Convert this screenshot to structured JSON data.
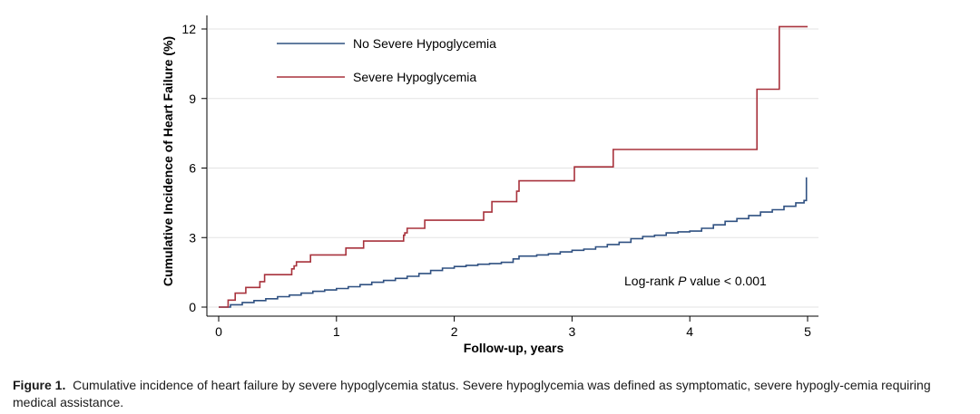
{
  "chart_data": {
    "type": "line",
    "step": true,
    "title": "",
    "xlabel": "Follow-up, years",
    "ylabel": "Cumulative Incidence of Heart Failure (%)",
    "xlim": [
      0,
      5
    ],
    "ylim": [
      0,
      12
    ],
    "xticks": [
      0,
      1,
      2,
      3,
      4,
      5
    ],
    "yticks": [
      0,
      3,
      6,
      9,
      12
    ],
    "grid": "horizontal",
    "legend_position": "top-left",
    "series": [
      {
        "name": "No Severe Hypoglycemia",
        "color": "#2f5081",
        "points": [
          [
            0,
            0
          ],
          [
            0.1,
            0.1
          ],
          [
            0.2,
            0.2
          ],
          [
            0.3,
            0.28
          ],
          [
            0.4,
            0.36
          ],
          [
            0.5,
            0.45
          ],
          [
            0.6,
            0.52
          ],
          [
            0.7,
            0.6
          ],
          [
            0.8,
            0.68
          ],
          [
            0.9,
            0.74
          ],
          [
            1.0,
            0.8
          ],
          [
            1.1,
            0.88
          ],
          [
            1.2,
            0.97
          ],
          [
            1.3,
            1.07
          ],
          [
            1.4,
            1.15
          ],
          [
            1.5,
            1.24
          ],
          [
            1.6,
            1.33
          ],
          [
            1.7,
            1.45
          ],
          [
            1.8,
            1.58
          ],
          [
            1.9,
            1.68
          ],
          [
            2.0,
            1.75
          ],
          [
            2.1,
            1.8
          ],
          [
            2.2,
            1.85
          ],
          [
            2.3,
            1.88
          ],
          [
            2.4,
            1.93
          ],
          [
            2.5,
            2.08
          ],
          [
            2.55,
            2.2
          ],
          [
            2.7,
            2.25
          ],
          [
            2.8,
            2.3
          ],
          [
            2.9,
            2.38
          ],
          [
            3.0,
            2.45
          ],
          [
            3.1,
            2.5
          ],
          [
            3.2,
            2.6
          ],
          [
            3.3,
            2.7
          ],
          [
            3.4,
            2.8
          ],
          [
            3.5,
            2.95
          ],
          [
            3.6,
            3.05
          ],
          [
            3.7,
            3.1
          ],
          [
            3.8,
            3.2
          ],
          [
            3.9,
            3.25
          ],
          [
            4.0,
            3.28
          ],
          [
            4.1,
            3.4
          ],
          [
            4.2,
            3.55
          ],
          [
            4.3,
            3.7
          ],
          [
            4.4,
            3.82
          ],
          [
            4.5,
            3.95
          ],
          [
            4.6,
            4.1
          ],
          [
            4.7,
            4.2
          ],
          [
            4.8,
            4.35
          ],
          [
            4.9,
            4.5
          ],
          [
            4.97,
            4.6
          ],
          [
            4.99,
            5.6
          ]
        ]
      },
      {
        "name": "Severe Hypoglycemia",
        "color": "#a8323c",
        "points": [
          [
            0,
            0
          ],
          [
            0.08,
            0.3
          ],
          [
            0.14,
            0.6
          ],
          [
            0.23,
            0.85
          ],
          [
            0.35,
            1.1
          ],
          [
            0.39,
            1.4
          ],
          [
            0.62,
            1.65
          ],
          [
            0.64,
            1.78
          ],
          [
            0.66,
            1.95
          ],
          [
            0.78,
            2.25
          ],
          [
            1.08,
            2.55
          ],
          [
            1.23,
            2.85
          ],
          [
            1.57,
            3.1
          ],
          [
            1.58,
            3.2
          ],
          [
            1.6,
            3.4
          ],
          [
            1.75,
            3.75
          ],
          [
            2.25,
            4.1
          ],
          [
            2.32,
            4.55
          ],
          [
            2.53,
            5.0
          ],
          [
            2.55,
            5.45
          ],
          [
            3.02,
            6.05
          ],
          [
            3.35,
            6.8
          ],
          [
            4.57,
            9.4
          ],
          [
            4.76,
            12.1
          ],
          [
            5.0,
            12.1
          ]
        ]
      }
    ],
    "annotations": [
      {
        "text_before": "Log-rank ",
        "text_italic": "P",
        "text_after": " value < 0.001"
      }
    ]
  },
  "caption": {
    "label": "Figure 1.",
    "text": "Cumulative incidence of heart failure by severe hypoglycemia status. Severe hypoglycemia was defined as symptomatic, severe hypogly-cemia requiring medical assistance."
  }
}
